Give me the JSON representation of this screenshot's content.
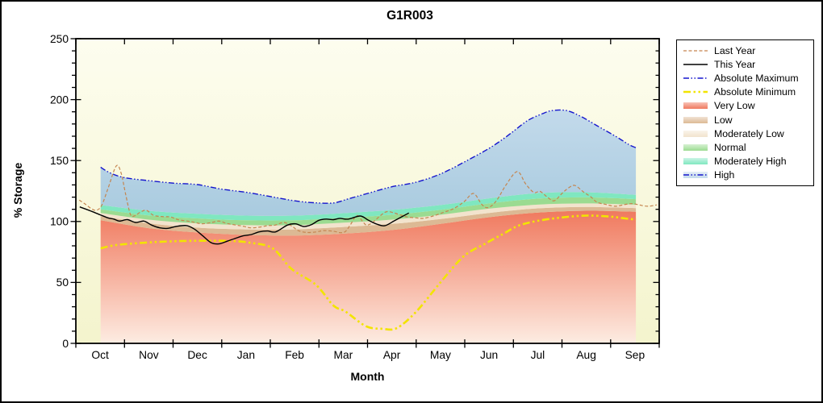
{
  "chart_data": {
    "type": "line",
    "title": "G1R003",
    "xlabel": "Month",
    "ylabel": "% Storage",
    "ylim": [
      0,
      250
    ],
    "y_ticks": [
      0,
      50,
      100,
      150,
      200,
      250
    ],
    "y_minor_step": 10,
    "x_categories": [
      "Oct",
      "Nov",
      "Dec",
      "Jan",
      "Feb",
      "Mar",
      "Apr",
      "May",
      "Jun",
      "Jul",
      "Aug",
      "Sep"
    ],
    "x_unit": "months_since_oct_1",
    "grid": false,
    "legend_position": "right",
    "plot_bg": {
      "top": "#fdfdef",
      "bottom": "#f4f4cd"
    },
    "series": [
      {
        "name": "Last Year",
        "color": "#c5854f",
        "dash": "4 2.5",
        "width": 1.2,
        "x": [
          0.07,
          0.2,
          0.32,
          0.42,
          0.53,
          0.66,
          0.83,
          0.93,
          1.02,
          1.12,
          1.2,
          1.32,
          1.45,
          1.6,
          1.8,
          1.95,
          2.1,
          2.3,
          2.45,
          2.6,
          2.8,
          2.95,
          3.1,
          3.3,
          3.45,
          3.6,
          3.8,
          3.95,
          4.1,
          4.28,
          4.45,
          4.57,
          4.75,
          4.95,
          5.1,
          5.3,
          5.45,
          5.55,
          5.65,
          5.78,
          5.9,
          5.98,
          6.1,
          6.27,
          6.4,
          6.55,
          6.7,
          6.82,
          7.0,
          7.15,
          7.35,
          7.56,
          7.76,
          7.98,
          8.18,
          8.35,
          8.48,
          8.65,
          8.85,
          9.08,
          9.25,
          9.42,
          9.55,
          9.7,
          9.84,
          10.0,
          10.15,
          10.27,
          10.45,
          10.6,
          10.72,
          10.9,
          11.1,
          11.3,
          11.45,
          11.6,
          11.77,
          11.95
        ],
        "y": [
          117.5,
          114,
          110.5,
          109.2,
          113,
          127,
          145.5,
          140,
          123,
          106,
          104.5,
          107.5,
          109.2,
          105,
          104,
          103.7,
          101.5,
          100.3,
          99.3,
          98.1,
          99.3,
          100.3,
          98.5,
          97,
          96,
          94.8,
          95.5,
          96.6,
          97,
          99.2,
          96,
          92.6,
          91,
          91.5,
          92.5,
          92,
          90.8,
          92,
          97.5,
          104.8,
          100,
          97,
          99,
          105,
          108.1,
          107,
          105,
          103.7,
          103,
          102.6,
          104.5,
          107.5,
          110.3,
          116,
          123,
          114,
          111.4,
          117,
          130,
          141,
          131,
          123.8,
          124.7,
          120,
          117,
          123,
          128,
          129.5,
          124,
          120,
          115.8,
          114,
          112.5,
          114,
          114.7,
          113.5,
          112.5,
          113.6
        ]
      },
      {
        "name": "This Year",
        "color": "#000000",
        "dash": "",
        "width": 1.4,
        "x": [
          0.08,
          0.28,
          0.5,
          0.66,
          0.78,
          0.9,
          1.06,
          1.23,
          1.4,
          1.56,
          1.73,
          1.89,
          2.06,
          2.28,
          2.44,
          2.61,
          2.78,
          2.94,
          3.11,
          3.27,
          3.44,
          3.61,
          3.77,
          3.94,
          4.11,
          4.35,
          4.52,
          4.69,
          4.85,
          5.0,
          5.15,
          5.3,
          5.43,
          5.6,
          5.85,
          6.02,
          6.18,
          6.35,
          6.55,
          6.71,
          6.85
        ],
        "y": [
          112,
          109,
          105.5,
          103,
          102,
          100.3,
          101.5,
          99.2,
          100.3,
          97,
          94.8,
          94.4,
          95.9,
          96.6,
          93.7,
          88.2,
          82.7,
          81.6,
          83.8,
          86,
          88.2,
          89.3,
          91.5,
          92.2,
          91.5,
          97,
          98.1,
          95.9,
          97.5,
          101,
          102,
          101.5,
          102.6,
          101.9,
          104.5,
          101,
          98,
          96.5,
          100.5,
          104,
          107
        ]
      },
      {
        "name": "Absolute Maximum",
        "color": "#1515cd",
        "dash": "7 2.5 1.5 2.5 1.5 2.5",
        "width": 1.4,
        "x": [
          0.51,
          0.7,
          1.0,
          1.5,
          2.0,
          2.5,
          3.0,
          3.5,
          4.0,
          4.5,
          4.9,
          5.3,
          5.6,
          6.0,
          6.5,
          7.0,
          7.5,
          8.0,
          8.5,
          8.8,
          9.0,
          9.3,
          9.6,
          9.8,
          10.1,
          10.4,
          10.76,
          11.1,
          11.37,
          11.52
        ],
        "y": [
          144.5,
          140,
          136,
          133.5,
          131.5,
          130.3,
          126.5,
          124,
          120.5,
          117,
          115.4,
          115.2,
          118.5,
          123,
          128.5,
          132.3,
          139,
          149,
          160,
          168,
          174,
          183,
          188.5,
          191,
          191,
          186,
          177.7,
          170,
          163.3,
          160.5
        ]
      },
      {
        "name": "Absolute Minimum",
        "color": "#f2e400",
        "dash": "9 3.5 2.5 3.5 2.5 3.5",
        "width": 2.6,
        "x": [
          0.51,
          0.8,
          1.2,
          1.7,
          2.2,
          2.7,
          3.2,
          3.6,
          4.05,
          4.44,
          4.94,
          5.3,
          5.55,
          5.97,
          6.3,
          6.6,
          7.0,
          7.5,
          7.98,
          8.43,
          8.8,
          9.1,
          9.5,
          10.0,
          10.5,
          11.0,
          11.3,
          11.52
        ],
        "y": [
          78,
          80.5,
          82,
          83.3,
          84,
          84.2,
          84,
          82.5,
          78,
          61,
          48,
          31,
          26,
          14,
          12,
          12.5,
          26,
          50,
          71.5,
          82,
          90,
          96.5,
          100.5,
          103.3,
          104.8,
          104,
          102.5,
          101.5
        ]
      }
    ],
    "bands": {
      "x": [
        0.51,
        1.5,
        2.5,
        3.5,
        4.5,
        5.5,
        6.5,
        7.5,
        8.5,
        9.5,
        10.5,
        11.52
      ],
      "very_low_top": [
        101,
        94.5,
        91,
        89,
        88.5,
        90,
        93,
        98,
        103.5,
        107.3,
        108.8,
        108
      ],
      "low_top": [
        104.5,
        98.5,
        95,
        93.5,
        93.5,
        95.5,
        98,
        102,
        107,
        110.8,
        112,
        111
      ],
      "moderately_low_top": [
        107,
        101.5,
        98.5,
        97,
        97,
        99,
        101.5,
        105.5,
        110.5,
        113.8,
        114.8,
        113.8
      ],
      "normal_top": [
        110,
        105,
        102.5,
        101,
        101,
        103,
        105.5,
        109.5,
        114.8,
        118.8,
        119.8,
        118.3
      ],
      "moderately_high_top": [
        113.5,
        108.8,
        106.3,
        104.8,
        104.8,
        106.8,
        109.5,
        113.5,
        119,
        123.3,
        124,
        121.8
      ],
      "high_top": "absolute_maximum",
      "layers": [
        {
          "name": "Very Low",
          "top": "very_low_top",
          "gradient": true,
          "color_top": "#f0795e",
          "color_bottom": "#fdece2"
        },
        {
          "name": "Low",
          "top": "low_top",
          "color": "#dcb994"
        },
        {
          "name": "Moderately Low",
          "top": "moderately_low_top",
          "color": "#f2e3cd"
        },
        {
          "name": "Normal",
          "top": "normal_top",
          "color": "#9bdb91"
        },
        {
          "name": "Moderately High",
          "top": "moderately_high_top",
          "color": "#7fe7c0"
        },
        {
          "name": "High",
          "top": "high_top",
          "gradient": true,
          "color_top": "#c3daeb",
          "color_bottom": "#a9cbdf"
        }
      ]
    }
  },
  "legend": {
    "items": [
      {
        "label": "Last Year",
        "swatch": "line"
      },
      {
        "label": "This Year",
        "swatch": "line"
      },
      {
        "label": "Absolute Maximum",
        "swatch": "line"
      },
      {
        "label": "Absolute Minimum",
        "swatch": "line"
      },
      {
        "label": "Very Low",
        "swatch": "band"
      },
      {
        "label": "Low",
        "swatch": "band"
      },
      {
        "label": "Moderately Low",
        "swatch": "band"
      },
      {
        "label": "Normal",
        "swatch": "band"
      },
      {
        "label": "Moderately High",
        "swatch": "band"
      },
      {
        "label": "High",
        "swatch": "band",
        "overlay": "Absolute Maximum"
      }
    ]
  }
}
